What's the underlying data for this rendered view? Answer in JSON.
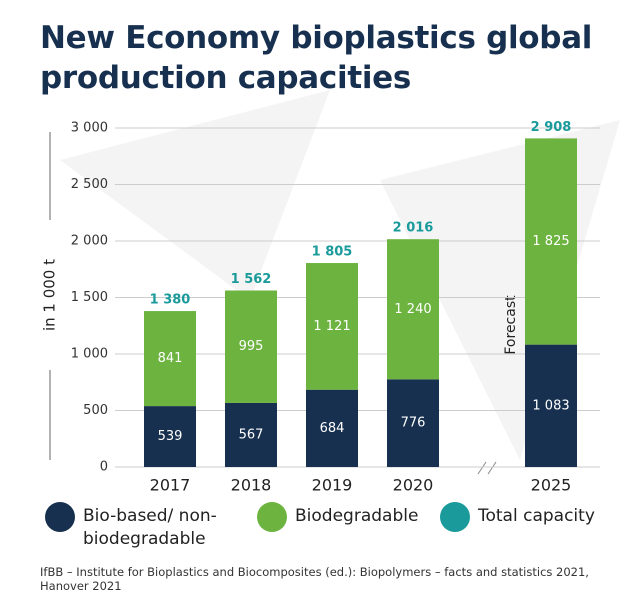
{
  "chart_data": {
    "type": "bar",
    "title": "New Economy bioplastics global production capacities",
    "y_label": "in 1 000 t",
    "annotation": "Forecast",
    "source": "IfBB – Institute for Bioplastics and Biocomposites (ed.): Biopolymers – facts and statistics 2021, Hanover 2021",
    "categories": [
      "2017",
      "2018",
      "2019",
      "2020",
      "2025"
    ],
    "series": [
      {
        "name": "Bio-based/ non-biodegradable",
        "color": "#17304f",
        "values": [
          539,
          567,
          684,
          776,
          1083
        ],
        "value_labels": [
          "539",
          "567",
          "684",
          "776",
          "1 083"
        ]
      },
      {
        "name": "Biodegradable",
        "color": "#6cb33f",
        "values": [
          841,
          995,
          1121,
          1240,
          1825
        ],
        "value_labels": [
          "841",
          "995",
          "1 121",
          "1 240",
          "1 825"
        ]
      },
      {
        "name": "Total capacity",
        "color": "#1a9a9a",
        "values": [
          1380,
          1562,
          1805,
          2016,
          2908
        ],
        "value_labels": [
          "1 380",
          "1 562",
          "1 805",
          "2 016",
          "2 908"
        ]
      }
    ],
    "ylim": [
      0,
      3000
    ],
    "yticks": [
      0,
      500,
      {
        "value": 1000,
        "label": "1 000"
      },
      {
        "value": 1500,
        "label": "1 500"
      },
      {
        "value": 2000,
        "label": "2 000"
      },
      {
        "value": 2500,
        "label": "2 500"
      },
      {
        "value": 3000,
        "label": "3 000"
      }
    ],
    "grid": true
  }
}
